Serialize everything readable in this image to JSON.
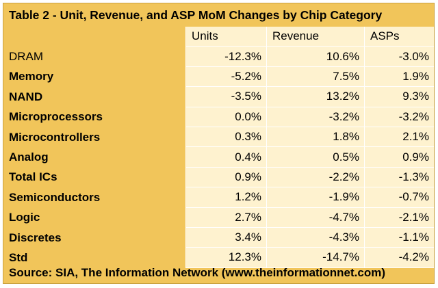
{
  "table": {
    "title": "Table 2 - Unit, Revenue, and ASP MoM Changes by Chip Category",
    "columns": [
      "",
      "Units",
      "Revenue",
      "ASPs"
    ],
    "rows": [
      {
        "category": "DRAM",
        "units": "-12.3%",
        "revenue": "10.6%",
        "asps": "-3.0%"
      },
      {
        "category": "Memory",
        "units": "-5.2%",
        "revenue": "7.5%",
        "asps": "1.9%"
      },
      {
        "category": "NAND",
        "units": "-3.5%",
        "revenue": "13.2%",
        "asps": "9.3%"
      },
      {
        "category": "Microprocessors",
        "units": "0.0%",
        "revenue": "-3.2%",
        "asps": "-3.2%"
      },
      {
        "category": "Microcontrollers",
        "units": "0.3%",
        "revenue": "1.8%",
        "asps": "2.1%"
      },
      {
        "category": "Analog",
        "units": "0.4%",
        "revenue": "0.5%",
        "asps": "0.9%"
      },
      {
        "category": "Total ICs",
        "units": "0.9%",
        "revenue": "-2.2%",
        "asps": "-1.3%"
      },
      {
        "category": "Semiconductors",
        "units": "1.2%",
        "revenue": "-1.9%",
        "asps": "-0.7%"
      },
      {
        "category": "Logic",
        "units": "2.7%",
        "revenue": "-4.7%",
        "asps": "-2.1%"
      },
      {
        "category": "Discretes",
        "units": "3.4%",
        "revenue": "-4.3%",
        "asps": "-1.1%"
      },
      {
        "category": "Std",
        "units": "12.3%",
        "revenue": "-14.7%",
        "asps": "-4.2%"
      }
    ],
    "source": "Source: SIA, The Information Network (www.theinformationnet.com)"
  },
  "colors": {
    "frame": "#f1c55a",
    "cell": "#fef2cf",
    "text": "#000000"
  }
}
